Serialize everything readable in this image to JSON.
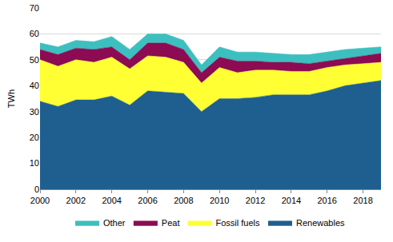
{
  "chart_data": {
    "type": "area",
    "stacked": true,
    "grid": true,
    "legend": "bottom",
    "y_label": "TWh",
    "x": [
      2000,
      2001,
      2002,
      2003,
      2004,
      2005,
      2006,
      2007,
      2008,
      2009,
      2010,
      2011,
      2012,
      2013,
      2014,
      2015,
      2016,
      2017,
      2018,
      2019
    ],
    "xlim": [
      2000,
      2019
    ],
    "xticks": [
      2000,
      2002,
      2004,
      2006,
      2008,
      2010,
      2012,
      2014,
      2016,
      2018
    ],
    "ylim": [
      0,
      70
    ],
    "yticks": [
      0,
      10,
      20,
      30,
      40,
      50,
      60,
      70
    ],
    "series": [
      {
        "name": "Renewables",
        "color": "#1f5f8f",
        "values": [
          34,
          32,
          34.5,
          34.5,
          36,
          32.5,
          38,
          37.5,
          37,
          30,
          35,
          35,
          35.5,
          36.5,
          36.5,
          36.5,
          38,
          40,
          41,
          42
        ]
      },
      {
        "name": "Fossil fuels",
        "color": "#ffff33",
        "values": [
          16,
          15.5,
          15.5,
          14.5,
          15,
          14,
          13.5,
          13.5,
          12,
          11,
          12,
          10,
          10.5,
          9.5,
          9,
          9,
          9,
          8,
          7.5,
          7
        ]
      },
      {
        "name": "Peat",
        "color": "#8c0b53",
        "values": [
          4,
          4.5,
          4.5,
          5,
          4,
          3.5,
          5,
          5.5,
          5,
          4,
          4,
          4.5,
          3.5,
          3,
          3.5,
          3,
          2.5,
          2.5,
          3,
          3.5
        ]
      },
      {
        "name": "Other",
        "color": "#3dbfbf",
        "values": [
          2.5,
          3,
          3,
          3,
          4,
          4,
          3.5,
          3.5,
          3.5,
          3,
          4,
          3.5,
          3.5,
          3.5,
          3,
          3.5,
          3.5,
          3.5,
          3,
          2.5
        ]
      }
    ]
  }
}
